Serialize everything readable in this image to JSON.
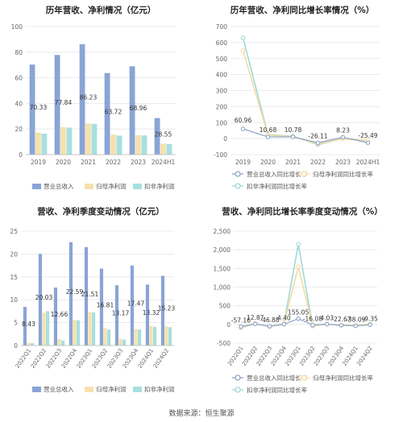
{
  "source": "数据来源：恒生聚源",
  "colors": {
    "revenue": "#8aa4d6",
    "net_profit": "#f6e1ad",
    "deducted": "#a7dfe0",
    "rev_line": "#8fa6c8",
    "np_line": "#f6dba0",
    "ded_line": "#9fd9da"
  },
  "chart_data": [
    {
      "type": "bar",
      "title": "历年营收、净利情况（亿元）",
      "categories": [
        "2019",
        "2020",
        "2021",
        "2022",
        "2023",
        "2024H1"
      ],
      "series": [
        {
          "name": "营业总收入",
          "values": [
            70.33,
            77.84,
            86.23,
            63.72,
            68.96,
            28.55
          ]
        },
        {
          "name": "归母净利润",
          "values": [
            17.2,
            21.5,
            24.3,
            15.6,
            15.2,
            8.6
          ]
        },
        {
          "name": "扣非净利润",
          "values": [
            16.4,
            21.0,
            24.0,
            14.8,
            15.0,
            8.2
          ]
        }
      ],
      "data_labels": [
        "70.33",
        "77.84",
        "86.23",
        "63.72",
        "68.96",
        "28.55"
      ],
      "yticks": [
        "0",
        "20",
        "40",
        "60",
        "80",
        "100"
      ],
      "ylim": [
        0,
        100
      ],
      "legend_position": "bottom"
    },
    {
      "type": "line",
      "title": "历年营收、净利同比增长率情况（%）",
      "categories": [
        "2019",
        "2020",
        "2021",
        "2022",
        "2023",
        "2024H1"
      ],
      "series": [
        {
          "name": "营业总收入同比增长率",
          "values": [
            60.96,
            10.68,
            10.78,
            -26.11,
            8.23,
            -25.49
          ]
        },
        {
          "name": "归母净利润同比增长率",
          "values": [
            550,
            22,
            12,
            -33,
            -2,
            -10
          ]
        },
        {
          "name": "扣非净利润同比增长率",
          "values": [
            630,
            25,
            15,
            -38,
            1,
            -12
          ]
        }
      ],
      "data_labels": [
        "60.96",
        "10.68",
        "10.78",
        "-26.11",
        "8.23",
        "-25.49"
      ],
      "yticks": [
        "-100",
        "0",
        "100",
        "200",
        "300",
        "400",
        "500",
        "600",
        "700"
      ],
      "ylim": [
        -100,
        700
      ],
      "legend_position": "bottom"
    },
    {
      "type": "bar",
      "title": "营收、净利季度变动情况（亿元）",
      "categories": [
        "2022Q1",
        "2022Q2",
        "2022Q3",
        "2022Q4",
        "2023Q1",
        "2023Q2",
        "2023Q3",
        "2023Q4",
        "2024Q1",
        "2024Q2"
      ],
      "series": [
        {
          "name": "营业总收入",
          "values": [
            8.43,
            20.03,
            12.66,
            22.59,
            21.51,
            16.81,
            13.17,
            17.47,
            13.32,
            15.23
          ]
        },
        {
          "name": "归母净利润",
          "values": [
            0.6,
            7.2,
            1.4,
            5.6,
            7.3,
            3.8,
            1.5,
            3.6,
            4.3,
            4.2
          ]
        },
        {
          "name": "扣非净利润",
          "values": [
            0.5,
            7.5,
            1.1,
            5.5,
            7.2,
            3.5,
            1.3,
            3.5,
            4.1,
            4.0
          ]
        }
      ],
      "data_labels": [
        "8.43",
        "20.03",
        "12.66",
        "22.59",
        "21.51",
        "16.81",
        "13.17",
        "17.47",
        "13.32",
        "15.23"
      ],
      "yticks": [
        "0",
        "5",
        "10",
        "15",
        "20",
        "25"
      ],
      "ylim": [
        0,
        25
      ],
      "legend_position": "bottom"
    },
    {
      "type": "line",
      "title": "营收、净利同比增长率季度变动情况（%）",
      "categories": [
        "2022Q1",
        "2022Q2",
        "2022Q3",
        "2022Q4",
        "2023Q1",
        "2023Q2",
        "2023Q3",
        "2023Q4",
        "2024Q1",
        "2024Q2"
      ],
      "series": [
        {
          "name": "营业总收入同比增长率",
          "values": [
            -57.16,
            12.87,
            -46.88,
            4.4,
            155.05,
            -16.08,
            4.03,
            -22.67,
            -38.09,
            -9.35
          ]
        },
        {
          "name": "归母净利润同比增长率",
          "values": [
            -80,
            20,
            -60,
            10,
            1550,
            -40,
            10,
            -20,
            -30,
            5
          ]
        },
        {
          "name": "扣非净利润同比增长率",
          "values": [
            -90,
            25,
            -65,
            15,
            2150,
            -45,
            15,
            -25,
            -35,
            10
          ]
        }
      ],
      "data_labels": [
        "-57.16",
        "12.87",
        "-46.88",
        "4.40",
        "155.05",
        "-16.08",
        "4.03",
        "-22.67",
        "-38.09",
        "-9.35"
      ],
      "yticks": [
        "-500",
        "0",
        "500",
        "1,000",
        "1,500",
        "2,000",
        "2,500"
      ],
      "ylim": [
        -500,
        2500
      ],
      "legend_position": "bottom"
    }
  ]
}
